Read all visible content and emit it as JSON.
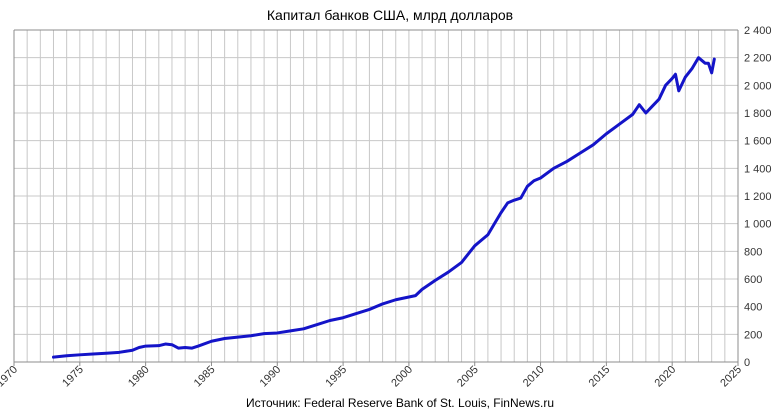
{
  "chart_data": {
    "type": "line",
    "title": "Капитал банков США, млрд долларов",
    "source": "Источник: Federal Reserve Bank of St. Louis, FinNews.ru",
    "xlabel": "",
    "ylabel": "",
    "xlim": [
      1970,
      2025
    ],
    "ylim": [
      0,
      2400
    ],
    "x_ticks": [
      1970,
      1975,
      1980,
      1985,
      1990,
      1995,
      2000,
      2005,
      2010,
      2015,
      2020,
      2025
    ],
    "x_tick_labels": [
      "1970",
      "1975",
      "1980",
      "1985",
      "1990",
      "1995",
      "2000",
      "2005",
      "2010",
      "2015",
      "2020",
      "2025"
    ],
    "y_ticks": [
      0,
      200,
      400,
      600,
      800,
      1000,
      1200,
      1400,
      1600,
      1800,
      2000,
      2200,
      2400
    ],
    "y_tick_labels": [
      "0",
      "200",
      "400",
      "600",
      "800",
      "1 000",
      "1 200",
      "1 400",
      "1 600",
      "1 800",
      "2 000",
      "2 200",
      "2 400"
    ],
    "grid": true,
    "legend": "none",
    "line_color": "#1414c8",
    "series": [
      {
        "x": [
          1973.0,
          1974.0,
          1975.0,
          1976.0,
          1977.0,
          1978.0,
          1979.0,
          1979.5,
          1980.0,
          1981.0,
          1981.5,
          1982.0,
          1982.5,
          1983.0,
          1983.5,
          1984.0,
          1985.0,
          1986.0,
          1987.0,
          1988.0,
          1989.0,
          1990.0,
          1991.0,
          1992.0,
          1993.0,
          1994.0,
          1995.0,
          1996.0,
          1997.0,
          1998.0,
          1999.0,
          2000.0,
          2000.5,
          2001.0,
          2002.0,
          2003.0,
          2004.0,
          2005.0,
          2005.5,
          2006.0,
          2006.5,
          2007.0,
          2007.5,
          2008.0,
          2008.5,
          2009.0,
          2009.5,
          2010.0,
          2011.0,
          2012.0,
          2013.0,
          2014.0,
          2015.0,
          2016.0,
          2017.0,
          2017.5,
          2018.0,
          2018.5,
          2019.0,
          2019.5,
          2020.0,
          2020.25,
          2020.5,
          2021.0,
          2021.5,
          2022.0,
          2022.5,
          2022.75,
          2023.0,
          2023.2
        ],
        "y": [
          35,
          45,
          52,
          58,
          63,
          70,
          85,
          105,
          115,
          118,
          130,
          125,
          100,
          105,
          100,
          115,
          150,
          170,
          180,
          190,
          205,
          210,
          225,
          240,
          270,
          300,
          320,
          350,
          380,
          420,
          450,
          470,
          480,
          525,
          590,
          650,
          720,
          840,
          880,
          920,
          1000,
          1080,
          1150,
          1170,
          1185,
          1270,
          1310,
          1330,
          1400,
          1450,
          1510,
          1570,
          1650,
          1720,
          1790,
          1860,
          1800,
          1850,
          1900,
          2000,
          2050,
          2080,
          1960,
          2060,
          2120,
          2200,
          2160,
          2160,
          2090,
          2190
        ]
      }
    ]
  }
}
